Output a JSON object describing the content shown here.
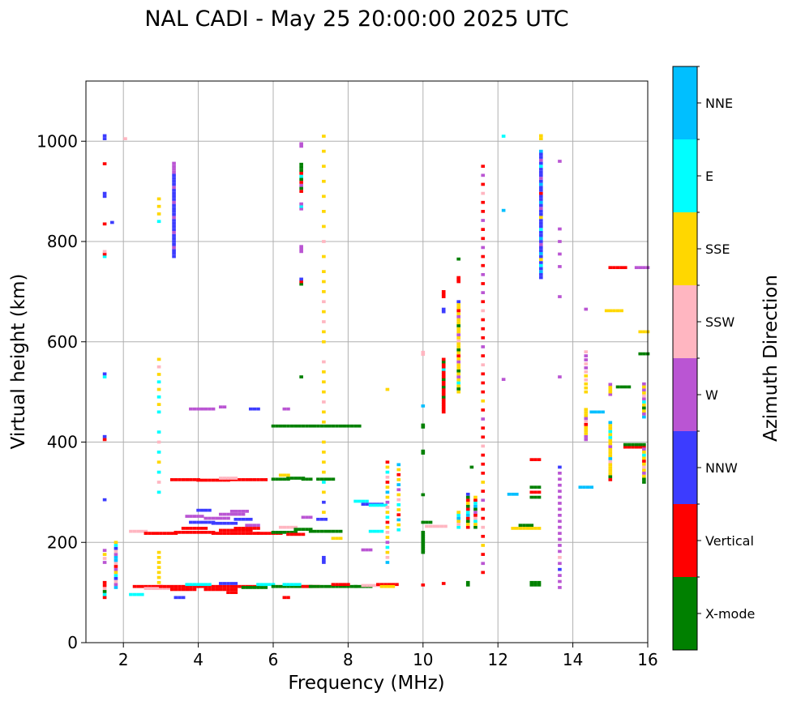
{
  "chart_data": {
    "type": "scatter",
    "title": "NAL CADI - May 25 20:00:00 2025 UTC",
    "xlabel": "Frequency (MHz)",
    "ylabel": "Virtual height (km)",
    "xlim": [
      1,
      16
    ],
    "ylim": [
      0,
      1120
    ],
    "xticks": [
      2,
      4,
      6,
      8,
      10,
      12,
      14,
      16
    ],
    "yticks": [
      0,
      200,
      400,
      600,
      800,
      1000
    ],
    "grid": true,
    "colorbar": {
      "label": "Azimuth Direction",
      "categories": [
        "X-mode",
        "Vertical",
        "NNW",
        "W",
        "SSW",
        "SSE",
        "E",
        "NNE"
      ],
      "colors": [
        "#008000",
        "#ff0000",
        "#3c3cff",
        "#ba55d3",
        "#ffb6c1",
        "#ffd700",
        "#00ffff",
        "#00bfff"
      ]
    },
    "runs_note": "[freq_start_MHz, freq_end_MHz, height_km, category_index]",
    "runs": [
      [
        2.3,
        3.0,
        112,
        1
      ],
      [
        2.6,
        3.2,
        108,
        4
      ],
      [
        3.0,
        4.0,
        112,
        1
      ],
      [
        3.3,
        3.9,
        106,
        1
      ],
      [
        4.0,
        5.6,
        112,
        1
      ],
      [
        4.2,
        5.0,
        106,
        1
      ],
      [
        3.7,
        4.3,
        116,
        6
      ],
      [
        4.6,
        5.0,
        118,
        2
      ],
      [
        5.2,
        5.8,
        110,
        0
      ],
      [
        5.6,
        6.0,
        116,
        6
      ],
      [
        6.0,
        7.0,
        112,
        0
      ],
      [
        6.3,
        6.7,
        116,
        6
      ],
      [
        6.8,
        7.2,
        112,
        1
      ],
      [
        7.0,
        8.2,
        112,
        0
      ],
      [
        7.6,
        8.0,
        116,
        1
      ],
      [
        8.2,
        8.6,
        112,
        0
      ],
      [
        8.4,
        8.8,
        114,
        4
      ],
      [
        8.8,
        9.3,
        116,
        1
      ],
      [
        8.9,
        9.2,
        112,
        5
      ],
      [
        2.2,
        2.5,
        96,
        6
      ],
      [
        3.4,
        3.6,
        90,
        2
      ],
      [
        4.8,
        5.0,
        100,
        1
      ],
      [
        6.3,
        6.4,
        90,
        1
      ],
      [
        2.2,
        2.6,
        222,
        4
      ],
      [
        2.6,
        3.4,
        218,
        1
      ],
      [
        3.4,
        4.4,
        220,
        1
      ],
      [
        3.6,
        4.2,
        228,
        1
      ],
      [
        4.4,
        5.6,
        218,
        1
      ],
      [
        4.6,
        5.4,
        224,
        1
      ],
      [
        5.0,
        5.6,
        228,
        1
      ],
      [
        5.6,
        6.2,
        218,
        1
      ],
      [
        3.8,
        4.4,
        240,
        2
      ],
      [
        4.2,
        4.8,
        248,
        3
      ],
      [
        4.4,
        5.0,
        238,
        2
      ],
      [
        5.0,
        5.4,
        246,
        2
      ],
      [
        4.6,
        5.2,
        256,
        3
      ],
      [
        3.7,
        4.1,
        252,
        3
      ],
      [
        5.3,
        5.6,
        234,
        3
      ],
      [
        4.0,
        4.3,
        264,
        2
      ],
      [
        4.9,
        5.3,
        262,
        3
      ],
      [
        6.0,
        6.6,
        220,
        0
      ],
      [
        6.2,
        6.6,
        230,
        4
      ],
      [
        6.6,
        7.0,
        226,
        0
      ],
      [
        7.0,
        7.8,
        222,
        0
      ],
      [
        6.4,
        6.8,
        216,
        1
      ],
      [
        7.2,
        7.4,
        246,
        2
      ],
      [
        6.8,
        7.0,
        250,
        3
      ],
      [
        3.3,
        4.0,
        325,
        1
      ],
      [
        4.0,
        4.8,
        324,
        1
      ],
      [
        4.8,
        5.8,
        325,
        1
      ],
      [
        4.6,
        5.0,
        328,
        4
      ],
      [
        6.0,
        6.4,
        326,
        0
      ],
      [
        6.4,
        6.8,
        328,
        0
      ],
      [
        6.8,
        7.0,
        326,
        0
      ],
      [
        7.2,
        7.6,
        326,
        0
      ],
      [
        6.2,
        6.4,
        334,
        5
      ],
      [
        6.0,
        8.3,
        432,
        0
      ],
      [
        3.8,
        4.1,
        466,
        3
      ],
      [
        4.2,
        4.4,
        466,
        3
      ],
      [
        4.6,
        4.7,
        470,
        3
      ],
      [
        5.4,
        5.6,
        466,
        2
      ],
      [
        6.3,
        6.4,
        466,
        3
      ],
      [
        8.2,
        8.5,
        282,
        6
      ],
      [
        8.4,
        8.9,
        276,
        2
      ],
      [
        8.6,
        9.0,
        274,
        6
      ],
      [
        7.6,
        7.8,
        208,
        5
      ],
      [
        8.6,
        8.9,
        222,
        6
      ],
      [
        8.4,
        8.6,
        185,
        3
      ],
      [
        12.4,
        13.1,
        228,
        5
      ],
      [
        12.6,
        12.9,
        234,
        0
      ],
      [
        12.3,
        12.5,
        296,
        7
      ],
      [
        12.9,
        13.1,
        365,
        1
      ],
      [
        12.9,
        13.1,
        310,
        0
      ],
      [
        12.9,
        13.1,
        300,
        1
      ],
      [
        12.9,
        13.1,
        290,
        0
      ],
      [
        12.9,
        13.1,
        120,
        0
      ],
      [
        12.9,
        13.1,
        115,
        0
      ],
      [
        10.1,
        10.6,
        232,
        4
      ],
      [
        10.0,
        10.2,
        240,
        0
      ],
      [
        15.4,
        15.9,
        390,
        1
      ],
      [
        15.4,
        15.9,
        395,
        0
      ],
      [
        14.5,
        14.8,
        460,
        7
      ],
      [
        15.2,
        15.5,
        510,
        0
      ],
      [
        15.0,
        15.4,
        748,
        1
      ],
      [
        15.7,
        16.0,
        748,
        3
      ],
      [
        14.9,
        15.3,
        662,
        5
      ],
      [
        15.8,
        16.0,
        620,
        5
      ],
      [
        15.8,
        16.0,
        576,
        0
      ],
      [
        14.2,
        14.5,
        310,
        7
      ]
    ],
    "cols_note": "[freq_MHz, height_start_km, height_end_km, step_km, category_sequence]",
    "cols": [
      [
        1.5,
        90,
        120,
        6,
        [
          1,
          6,
          0,
          4,
          1
        ]
      ],
      [
        1.5,
        160,
        190,
        8,
        [
          3,
          4,
          5
        ]
      ],
      [
        1.5,
        285,
        290,
        6,
        [
          2
        ]
      ],
      [
        1.5,
        405,
        415,
        6,
        [
          1,
          2
        ]
      ],
      [
        1.5,
        530,
        536,
        6,
        [
          6,
          2
        ]
      ],
      [
        1.5,
        770,
        780,
        5,
        [
          6,
          1,
          4
        ]
      ],
      [
        1.5,
        890,
        896,
        6,
        [
          2
        ]
      ],
      [
        1.5,
        955,
        960,
        6,
        [
          1
        ]
      ],
      [
        1.5,
        1005,
        1015,
        6,
        [
          2,
          2
        ]
      ],
      [
        1.5,
        835,
        840,
        6,
        [
          1
        ]
      ],
      [
        1.8,
        110,
        200,
        6,
        [
          7,
          3,
          4,
          2,
          6,
          5,
          3,
          1,
          4,
          7
        ]
      ],
      [
        1.7,
        838,
        842,
        6,
        [
          2
        ]
      ],
      [
        2.05,
        1005,
        1008,
        6,
        [
          4
        ]
      ],
      [
        2.95,
        120,
        180,
        10,
        [
          5,
          5,
          5,
          5,
          5,
          5
        ]
      ],
      [
        2.95,
        300,
        420,
        20,
        [
          6,
          4,
          6,
          5,
          6,
          4
        ]
      ],
      [
        2.95,
        460,
        570,
        15,
        [
          6,
          5,
          6,
          5,
          6,
          5,
          4,
          5
        ]
      ],
      [
        2.95,
        840,
        885,
        15,
        [
          6,
          5,
          5,
          5
        ]
      ],
      [
        3.35,
        770,
        960,
        6,
        [
          2,
          2,
          2,
          3,
          2,
          2,
          2,
          2,
          3,
          2,
          2,
          2,
          2,
          3,
          2,
          2,
          2,
          2,
          3,
          2,
          2,
          2,
          2,
          3,
          2,
          2,
          2,
          2,
          3,
          3,
          3,
          3
        ]
      ],
      [
        6.75,
        530,
        530,
        6,
        [
          0
        ]
      ],
      [
        6.75,
        715,
        725,
        5,
        [
          0,
          1,
          2
        ]
      ],
      [
        6.75,
        780,
        790,
        5,
        [
          3,
          3
        ]
      ],
      [
        6.75,
        865,
        875,
        5,
        [
          3,
          6
        ]
      ],
      [
        6.75,
        900,
        955,
        6,
        [
          1,
          0,
          3,
          1,
          0,
          6,
          1,
          0,
          0,
          0
        ]
      ],
      [
        6.75,
        990,
        995,
        5,
        [
          3
        ]
      ],
      [
        7.35,
        160,
        170,
        5,
        [
          2
        ]
      ],
      [
        7.35,
        260,
        400,
        20,
        [
          5,
          2,
          5,
          6,
          5,
          5,
          5,
          5
        ]
      ],
      [
        7.35,
        440,
        560,
        20,
        [
          5,
          5,
          4,
          5,
          5,
          5,
          4
        ]
      ],
      [
        7.35,
        600,
        740,
        20,
        [
          5,
          5,
          4,
          5,
          4,
          5,
          5,
          5
        ]
      ],
      [
        7.35,
        770,
        1010,
        30,
        [
          5,
          4,
          5,
          5,
          5,
          5,
          5,
          5,
          5
        ]
      ],
      [
        9.05,
        160,
        360,
        10,
        [
          7,
          4,
          5,
          6,
          3,
          5,
          4,
          5,
          1,
          6,
          5,
          4,
          3,
          5,
          7,
          5,
          1,
          4,
          6,
          5,
          1
        ]
      ],
      [
        9.35,
        225,
        360,
        10,
        [
          6,
          5,
          7,
          1,
          5,
          6,
          4,
          5,
          3,
          7,
          5,
          1,
          5,
          7
        ]
      ],
      [
        9.05,
        505,
        505,
        5,
        [
          5
        ]
      ],
      [
        10.0,
        180,
        220,
        4,
        [
          0,
          0,
          0,
          0,
          0,
          0,
          0,
          0,
          0,
          0
        ]
      ],
      [
        10.0,
        295,
        295,
        5,
        [
          0
        ]
      ],
      [
        10.0,
        378,
        382,
        4,
        [
          0,
          0
        ]
      ],
      [
        10.0,
        430,
        434,
        4,
        [
          0,
          0
        ]
      ],
      [
        10.0,
        575,
        582,
        4,
        [
          4,
          4
        ]
      ],
      [
        10.0,
        115,
        115,
        5,
        [
          1
        ]
      ],
      [
        10.0,
        472,
        474,
        5,
        [
          7
        ]
      ],
      [
        10.55,
        460,
        565,
        5,
        [
          1,
          1,
          1,
          1,
          1,
          1,
          0,
          1,
          1,
          1,
          0,
          1,
          1,
          0,
          1,
          1,
          1,
          6,
          1,
          1,
          0,
          1
        ]
      ],
      [
        10.55,
        660,
        665,
        5,
        [
          2
        ]
      ],
      [
        10.55,
        690,
        700,
        5,
        [
          1,
          1,
          1
        ]
      ],
      [
        10.55,
        118,
        118,
        5,
        [
          1
        ]
      ],
      [
        10.95,
        500,
        680,
        6,
        [
          5,
          0,
          5,
          6,
          5,
          3,
          5,
          0,
          5,
          5,
          3,
          5,
          1,
          5,
          0,
          5,
          5,
          4,
          5,
          3,
          5,
          5,
          0,
          5,
          5,
          3,
          5,
          1,
          5,
          5,
          2
        ]
      ],
      [
        10.95,
        720,
        728,
        4,
        [
          1,
          1,
          1
        ]
      ],
      [
        10.95,
        765,
        765,
        5,
        [
          0
        ]
      ],
      [
        10.95,
        230,
        260,
        6,
        [
          6,
          4,
          5,
          7,
          6,
          5
        ]
      ],
      [
        11.2,
        230,
        300,
        6,
        [
          1,
          5,
          0,
          1,
          7,
          6,
          1,
          0,
          5,
          1,
          0,
          2
        ]
      ],
      [
        11.4,
        230,
        290,
        6,
        [
          0,
          5,
          6,
          4,
          1,
          3,
          0,
          7,
          6,
          1,
          5
        ]
      ],
      [
        11.2,
        115,
        120,
        5,
        [
          0,
          0
        ]
      ],
      [
        11.3,
        350,
        350,
        5,
        [
          0
        ]
      ],
      [
        11.6,
        140,
        960,
        18,
        [
          1,
          3,
          1,
          5,
          1,
          4,
          1,
          1,
          3,
          1,
          5,
          1,
          1,
          1,
          4,
          1,
          1,
          3,
          1,
          5,
          1,
          1,
          1,
          4,
          1,
          3,
          1,
          1,
          1,
          4,
          1,
          3,
          1,
          3,
          1,
          1,
          3,
          1,
          1,
          3,
          1,
          1,
          4,
          1,
          3,
          1,
          1
        ]
      ],
      [
        12.15,
        525,
        525,
        5,
        [
          3
        ]
      ],
      [
        12.15,
        862,
        862,
        5,
        [
          7
        ]
      ],
      [
        12.15,
        1010,
        1010,
        5,
        [
          6
        ]
      ],
      [
        13.15,
        728,
        985,
        6,
        [
          2,
          2,
          7,
          2,
          6,
          2,
          5,
          2,
          7,
          2,
          2,
          3,
          2,
          7,
          2,
          2,
          6,
          2,
          2,
          2,
          5,
          2,
          2,
          3,
          2,
          7,
          2,
          2,
          1,
          2,
          2,
          7,
          2,
          3,
          2,
          2,
          2,
          6,
          2,
          3,
          2,
          2,
          7,
          5
        ]
      ],
      [
        13.15,
        1005,
        1015,
        6,
        [
          5,
          5
        ]
      ],
      [
        13.65,
        110,
        360,
        12,
        [
          3,
          3,
          3,
          2,
          3,
          4,
          3,
          3,
          3,
          3,
          3,
          3,
          3,
          3,
          3,
          3,
          3,
          3,
          3,
          3,
          2
        ]
      ],
      [
        13.65,
        530,
        532,
        5,
        [
          3
        ]
      ],
      [
        13.65,
        690,
        690,
        5,
        [
          3
        ]
      ],
      [
        13.65,
        750,
        835,
        25,
        [
          3,
          3,
          3,
          3
        ]
      ],
      [
        13.65,
        960,
        960,
        5,
        [
          3
        ]
      ],
      [
        14.35,
        405,
        470,
        6,
        [
          3,
          3,
          5,
          5,
          5,
          1,
          4,
          3,
          5,
          5,
          5
        ]
      ],
      [
        14.35,
        500,
        585,
        8,
        [
          5,
          5,
          5,
          4,
          5,
          4,
          3,
          4,
          3,
          3,
          4
        ]
      ],
      [
        14.35,
        665,
        665,
        5,
        [
          3
        ]
      ],
      [
        15.0,
        325,
        440,
        6,
        [
          1,
          0,
          5,
          5,
          5,
          5,
          4,
          7,
          5,
          5,
          5,
          3,
          5,
          5,
          6,
          5,
          6,
          5,
          5,
          7
        ]
      ],
      [
        15.0,
        495,
        515,
        5,
        [
          3,
          5,
          5,
          5
        ]
      ],
      [
        15.9,
        320,
        390,
        6,
        [
          0,
          0,
          5,
          3,
          5,
          4,
          5,
          1,
          5,
          6,
          5,
          3
        ]
      ],
      [
        15.9,
        450,
        520,
        6,
        [
          7,
          3,
          5,
          0,
          5,
          6,
          3,
          4,
          5,
          3,
          5,
          3
        ]
      ]
    ]
  }
}
